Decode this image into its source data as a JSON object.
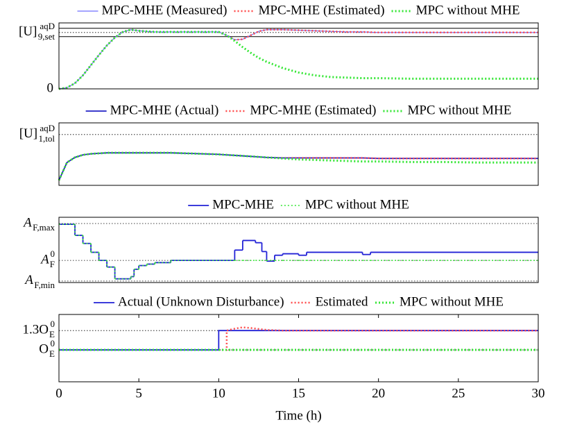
{
  "chart_data": [
    {
      "type": "line",
      "legend": "top",
      "x": [
        0,
        0.5,
        1,
        1.5,
        2,
        2.5,
        3,
        3.5,
        4,
        4.5,
        5,
        6,
        7,
        8,
        9,
        10,
        10.5,
        11,
        11.5,
        12,
        12.5,
        13,
        14,
        15,
        16,
        17,
        18,
        19,
        20,
        22,
        24,
        26,
        28,
        30
      ],
      "xlim": [
        0,
        30
      ],
      "ylim": [
        0,
        1.17
      ],
      "yticks": [
        0,
        {
          "value": 1,
          "label": "[U]",
          "sup": "aqD",
          "sub": "9,set"
        }
      ],
      "limits": [
        1.074,
        0.926
      ],
      "series": [
        {
          "name": "MPC-MHE (Measured)",
          "color": "#6f6fff",
          "style": "solid",
          "width": 1.2,
          "values": [
            0,
            0.02,
            0.1,
            0.24,
            0.42,
            0.6,
            0.77,
            0.91,
            1.01,
            1.05,
            1.03,
            1.01,
            1.01,
            1.01,
            1.01,
            1.01,
            0.95,
            0.87,
            0.88,
            0.95,
            1.02,
            1.05,
            1.05,
            1.04,
            1.03,
            1.02,
            1.01,
            1.01,
            1.0,
            1.0,
            1.0,
            1.0,
            1.0,
            1.0
          ]
        },
        {
          "name": "MPC-MHE (Estimated)",
          "color": "#ff4a4a",
          "style": "dotted",
          "width": 2.5,
          "values": [
            0,
            0.02,
            0.1,
            0.24,
            0.42,
            0.6,
            0.77,
            0.91,
            1.01,
            1.05,
            1.03,
            1.01,
            1.01,
            1.01,
            1.01,
            1.01,
            0.95,
            0.87,
            0.88,
            0.95,
            1.02,
            1.05,
            1.05,
            1.04,
            1.03,
            1.02,
            1.01,
            1.01,
            1.0,
            1.0,
            1.0,
            1.0,
            1.0,
            1.0
          ]
        },
        {
          "name": "MPC without MHE",
          "color": "#33e633",
          "style": "dotted",
          "width": 3,
          "values": [
            0,
            0.02,
            0.1,
            0.24,
            0.42,
            0.6,
            0.77,
            0.91,
            1.01,
            1.05,
            1.03,
            1.01,
            1.01,
            1.01,
            1.01,
            1.01,
            0.95,
            0.85,
            0.74,
            0.64,
            0.55,
            0.48,
            0.37,
            0.29,
            0.24,
            0.21,
            0.2,
            0.19,
            0.19,
            0.18,
            0.18,
            0.18,
            0.18,
            0.18
          ]
        }
      ]
    },
    {
      "type": "line",
      "legend": "top",
      "x": [
        0,
        0.5,
        1,
        1.5,
        2,
        2.5,
        3,
        3.5,
        4,
        4.5,
        5,
        6,
        7,
        8,
        9,
        10,
        10.5,
        11,
        11.5,
        12,
        12.5,
        13,
        14,
        15,
        16,
        17,
        18,
        19,
        20,
        22,
        24,
        26,
        28,
        30
      ],
      "xlim": [
        0,
        30
      ],
      "ylim": [
        0,
        1.23
      ],
      "yticks": [
        {
          "value": 1,
          "label": "[U]",
          "sup": "aqD",
          "sub": "1,tol"
        }
      ],
      "series": [
        {
          "name": "MPC-MHE (Actual)",
          "color": "#2121c4",
          "style": "solid",
          "width": 1.8,
          "values": [
            0.1,
            0.45,
            0.55,
            0.6,
            0.62,
            0.63,
            0.64,
            0.64,
            0.64,
            0.64,
            0.64,
            0.64,
            0.64,
            0.63,
            0.62,
            0.61,
            0.6,
            0.59,
            0.58,
            0.57,
            0.56,
            0.55,
            0.54,
            0.54,
            0.54,
            0.54,
            0.54,
            0.54,
            0.53,
            0.53,
            0.53,
            0.53,
            0.53,
            0.53
          ]
        },
        {
          "name": "MPC-MHE (Estimated)",
          "color": "#ff4a4a",
          "style": "dotted",
          "width": 2.5,
          "values": [
            0.1,
            0.45,
            0.55,
            0.6,
            0.62,
            0.63,
            0.64,
            0.64,
            0.64,
            0.64,
            0.64,
            0.64,
            0.64,
            0.63,
            0.62,
            0.61,
            0.6,
            0.59,
            0.58,
            0.57,
            0.56,
            0.55,
            0.54,
            0.54,
            0.54,
            0.54,
            0.54,
            0.54,
            0.53,
            0.53,
            0.53,
            0.53,
            0.53,
            0.53
          ]
        },
        {
          "name": "MPC without MHE",
          "color": "#33e633",
          "style": "dotted",
          "width": 3,
          "values": [
            0.1,
            0.45,
            0.55,
            0.6,
            0.62,
            0.63,
            0.64,
            0.64,
            0.64,
            0.64,
            0.64,
            0.64,
            0.64,
            0.63,
            0.62,
            0.61,
            0.6,
            0.59,
            0.58,
            0.57,
            0.56,
            0.55,
            0.53,
            0.51,
            0.5,
            0.49,
            0.48,
            0.47,
            0.47,
            0.46,
            0.46,
            0.45,
            0.45,
            0.45
          ]
        }
      ]
    },
    {
      "type": "step",
      "legend": "top",
      "x": [
        0,
        1,
        1.5,
        2,
        2.5,
        3,
        3.5,
        4.5,
        4.7,
        5,
        5.5,
        6,
        7,
        11,
        11.5,
        12.3,
        12.7,
        13,
        13.5,
        14,
        15,
        15.5,
        19,
        19.5,
        30
      ],
      "xlim": [
        0,
        30
      ],
      "ylim": [
        0.7,
        1.585
      ],
      "yticks": [
        {
          "value": 1.5,
          "label": "A",
          "sub": "F,max"
        },
        {
          "value": 1,
          "label": "A",
          "sup": "0",
          "sub": "F"
        },
        {
          "value": 0.72,
          "label": "A",
          "sub": "F,min"
        }
      ],
      "series": [
        {
          "name": "MPC-MHE",
          "color": "#2121d6",
          "style": "solid",
          "width": 1.8,
          "values": [
            1.49,
            1.34,
            1.23,
            1.11,
            1.0,
            0.91,
            0.75,
            0.78,
            0.88,
            0.93,
            0.95,
            0.97,
            1.0,
            1.14,
            1.27,
            1.24,
            1.12,
            0.99,
            1.07,
            1.09,
            1.07,
            1.11,
            1.08,
            1.11,
            1.11
          ]
        },
        {
          "name": "MPC without MHE",
          "color": "#33e633",
          "style": "dotted",
          "width": 1.5,
          "values": [
            1.49,
            1.34,
            1.23,
            1.11,
            1.0,
            0.91,
            0.75,
            0.78,
            0.88,
            0.93,
            0.95,
            0.97,
            1.0,
            1.0,
            1.0,
            1.0,
            1.0,
            1.0,
            1.0,
            1.0,
            1.0,
            1.0,
            1.0,
            1.0,
            1.0
          ]
        }
      ]
    },
    {
      "type": "line",
      "legend": "top",
      "xlabel": "Time (h)",
      "x": [
        0,
        10,
        10,
        10.5,
        10.5,
        11,
        11.5,
        12,
        13,
        14,
        30
      ],
      "xlim": [
        0,
        30
      ],
      "xticks": [
        0,
        5,
        10,
        15,
        20,
        25,
        30
      ],
      "ylim": [
        0.505,
        1.55
      ],
      "yticks": [
        {
          "value": 1.3,
          "label": "1.3O",
          "sup": "0",
          "sub": "E"
        },
        {
          "value": 1,
          "label": "O",
          "sup": "0",
          "sub": "E"
        }
      ],
      "series": [
        {
          "name": "Actual (Unknown Disturbance)",
          "color": "#2121d6",
          "style": "solid",
          "width": 1.8,
          "values": [
            1,
            1,
            1.3,
            1.3,
            1.3,
            1.3,
            1.3,
            1.3,
            1.3,
            1.3,
            1.3
          ]
        },
        {
          "name": "Estimated",
          "color": "#ff4a4a",
          "style": "dotted",
          "width": 2.5,
          "values": [
            1,
            1,
            1,
            1,
            1.3,
            1.33,
            1.35,
            1.34,
            1.31,
            1.3,
            1.3
          ]
        },
        {
          "name": "MPC without MHE",
          "color": "#33e633",
          "style": "dotted",
          "width": 3,
          "values": [
            1,
            1,
            1,
            1,
            1,
            1,
            1,
            1,
            1,
            1,
            1
          ]
        }
      ]
    }
  ]
}
